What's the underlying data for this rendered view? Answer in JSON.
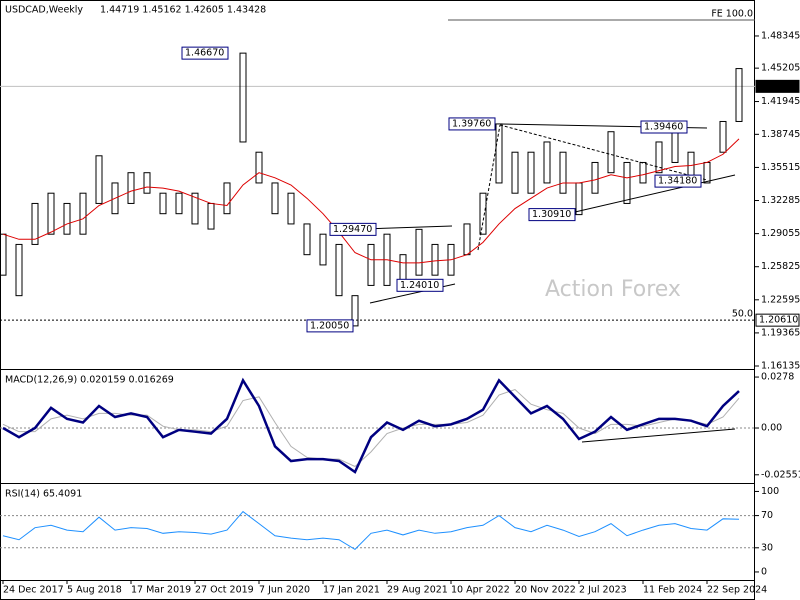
{
  "chart_data": {
    "type": "ohlc",
    "title": "USDCAD,Weekly",
    "last_bar": "1.44719 1.45162 1.42605 1.43428",
    "watermark": "Action Forex",
    "categories": [
      "24 Dec 2017",
      null,
      null,
      null,
      "5 Aug 2018",
      null,
      null,
      null,
      "17 Mar 2019",
      null,
      null,
      null,
      "27 Oct 2019",
      null,
      null,
      null,
      "7 Jun 2020",
      null,
      null,
      null,
      "17 Jan 2021",
      null,
      null,
      null,
      "29 Aug 2021",
      null,
      null,
      null,
      "10 Apr 2022",
      null,
      null,
      null,
      "20 Nov 2022",
      null,
      null,
      null,
      "2 Jul 2023",
      null,
      null,
      null,
      "11 Feb 2024",
      null,
      null,
      null,
      "22 Sep 2024",
      null,
      null
    ],
    "ylim": [
      1.1594,
      1.5166
    ],
    "yticks": [
      1.48345,
      1.45205,
      1.41945,
      1.38745,
      1.35515,
      1.32285,
      1.29055,
      1.25825,
      1.22595,
      1.19365,
      1.16135
    ],
    "series": [
      {
        "color": "#000000",
        "low": [
          1.25,
          1.23,
          1.28,
          1.29,
          1.29,
          1.29,
          1.32,
          1.31,
          1.32,
          1.33,
          1.31,
          1.31,
          1.3,
          1.295,
          1.31,
          1.38,
          1.34,
          1.31,
          1.3,
          1.27,
          1.26,
          1.23,
          1.2005,
          1.24,
          1.24,
          1.2401,
          1.25,
          1.25,
          1.25,
          1.27,
          1.29,
          1.34,
          1.33,
          1.33,
          1.34,
          1.33,
          1.3091,
          1.33,
          1.35,
          1.32,
          1.34,
          1.35,
          1.36,
          1.3418,
          1.34,
          1.37,
          1.4
        ],
        "high": [
          1.29,
          1.28,
          1.32,
          1.33,
          1.32,
          1.33,
          1.3665,
          1.34,
          1.35,
          1.35,
          1.33,
          1.33,
          1.33,
          1.32,
          1.34,
          1.4667,
          1.37,
          1.34,
          1.33,
          1.3,
          1.29,
          1.28,
          1.23,
          1.28,
          1.29,
          1.27,
          1.2947,
          1.28,
          1.28,
          1.3,
          1.33,
          1.3976,
          1.37,
          1.37,
          1.38,
          1.37,
          1.34,
          1.36,
          1.39,
          1.36,
          1.36,
          1.38,
          1.3946,
          1.37,
          1.36,
          1.4,
          1.45162
        ]
      },
      {
        "color": "#dd0000",
        "values": [
          1.29,
          1.285,
          1.285,
          1.292,
          1.3,
          1.305,
          1.318,
          1.325,
          1.332,
          1.336,
          1.335,
          1.332,
          1.326,
          1.32,
          1.318,
          1.338,
          1.35,
          1.345,
          1.338,
          1.325,
          1.31,
          1.292,
          1.272,
          1.265,
          1.265,
          1.262,
          1.262,
          1.264,
          1.265,
          1.27,
          1.282,
          1.3,
          1.315,
          1.325,
          1.335,
          1.34,
          1.34,
          1.343,
          1.348,
          1.345,
          1.348,
          1.352,
          1.356,
          1.357,
          1.36,
          1.368,
          1.383
        ]
      }
    ],
    "annotations": [
      {
        "value": 1.4667,
        "label": "1.46670"
      },
      {
        "value": 1.3976,
        "label": "1.39760"
      },
      {
        "value": 1.3946,
        "label": "1.39460"
      },
      {
        "value": 1.3418,
        "label": "1.34180"
      },
      {
        "value": 1.3091,
        "label": "1.30910"
      },
      {
        "value": 1.2947,
        "label": "1.29470"
      },
      {
        "value": 1.2401,
        "label": "1.24010"
      },
      {
        "value": 1.2005,
        "label": "1.20050"
      }
    ],
    "levels": [
      {
        "value": 1.43428,
        "label": "1.43428",
        "style": "current"
      },
      {
        "value": 1.2061,
        "label": "1.20610",
        "tag": "50.0",
        "style": "dotted"
      },
      {
        "value": 1.499,
        "tag": "FE 100.0",
        "style": "fe"
      }
    ],
    "panels": [
      {
        "type": "line",
        "title": "MACD(12,26,9) 0.020159 0.016269",
        "ylim": [
          -0.0289,
          0.0311
        ],
        "yticks": [
          0.0278,
          {
            "value": 0,
            "label": "0.00"
          },
          -0.025511
        ],
        "levels": [
          0
        ],
        "series": [
          {
            "color": "#000080",
            "width": 2.5,
            "values": [
              0.0,
              -0.005,
              0.0,
              0.011,
              0.005,
              0.003,
              0.012,
              0.006,
              0.008,
              0.006,
              -0.005,
              -0.001,
              -0.002,
              -0.003,
              0.005,
              0.026,
              0.012,
              -0.01,
              -0.018,
              -0.017,
              -0.017,
              -0.018,
              -0.024,
              -0.005,
              0.003,
              -0.001,
              0.004,
              0.001,
              0.002,
              0.005,
              0.01,
              0.026,
              0.017,
              0.008,
              0.012,
              0.005,
              -0.006,
              -0.002,
              0.006,
              -0.001,
              0.002,
              0.005,
              0.005,
              0.004,
              0.001,
              0.012,
              0.020159
            ]
          },
          {
            "color": "#b0b0b0",
            "width": 1,
            "values": [
              0.002,
              -0.002,
              -0.002,
              0.005,
              0.007,
              0.005,
              0.008,
              0.008,
              0.007,
              0.007,
              0.001,
              -0.001,
              -0.001,
              -0.002,
              0.001,
              0.015,
              0.017,
              0.003,
              -0.01,
              -0.016,
              -0.017,
              -0.017,
              -0.021,
              -0.013,
              -0.003,
              0.0,
              0.002,
              0.002,
              0.002,
              0.003,
              0.007,
              0.018,
              0.021,
              0.013,
              0.01,
              0.008,
              0.0,
              -0.003,
              0.002,
              0.002,
              0.001,
              0.003,
              0.005,
              0.004,
              0.002,
              0.006,
              0.016269
            ]
          }
        ]
      },
      {
        "type": "line",
        "title": "RSI(14) 65.4091",
        "ylim": [
          -10,
          108
        ],
        "yticks": [
          100,
          70,
          30,
          0
        ],
        "levels": [
          70,
          30
        ],
        "series": [
          {
            "color": "#1e90ff",
            "width": 1,
            "values": [
              45,
              40,
              55,
              58,
              52,
              50,
              68,
              52,
              55,
              54,
              48,
              50,
              49,
              47,
              52,
              75,
              60,
              45,
              42,
              40,
              42,
              40,
              28,
              48,
              52,
              46,
              52,
              48,
              50,
              55,
              58,
              70,
              55,
              50,
              58,
              52,
              44,
              50,
              60,
              45,
              52,
              58,
              60,
              54,
              52,
              66,
              65.4091
            ]
          }
        ]
      }
    ]
  }
}
